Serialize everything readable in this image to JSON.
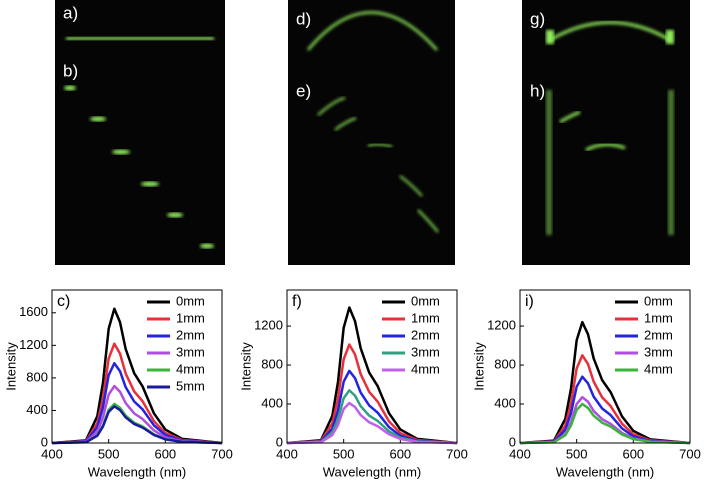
{
  "panels": {
    "labels": [
      "a)",
      "b)",
      "d)",
      "e)",
      "g)",
      "h)"
    ]
  },
  "chart_data": [
    {
      "type": "line",
      "label": "c)",
      "x_label": "Wavelength (nm)",
      "y_label": "Intensity",
      "x": [
        400,
        460,
        480,
        490,
        500,
        510,
        520,
        530,
        545,
        560,
        580,
        600,
        630,
        700
      ],
      "xlim": [
        400,
        700
      ],
      "xticks": [
        400,
        500,
        600,
        700
      ],
      "ylim": [
        0,
        1880
      ],
      "yticks": [
        0,
        400,
        800,
        1200,
        1600
      ],
      "legend": "upper right",
      "series": [
        {
          "name": "0mm",
          "color": "#000000",
          "values": [
            0,
            33,
            330,
            743,
            1403,
            1650,
            1485,
            1155,
            858,
            693,
            363,
            165,
            50,
            0
          ]
        },
        {
          "name": "1mm",
          "color": "#e8303a",
          "values": [
            0,
            24,
            244,
            549,
            1037,
            1220,
            1098,
            854,
            634,
            512,
            268,
            122,
            37,
            0
          ]
        },
        {
          "name": "2mm",
          "color": "#2424e0",
          "values": [
            0,
            20,
            196,
            441,
            833,
            980,
            882,
            686,
            510,
            412,
            216,
            98,
            29,
            0
          ]
        },
        {
          "name": "3mm",
          "color": "#b04ee0",
          "values": [
            0,
            14,
            140,
            315,
            595,
            700,
            630,
            490,
            364,
            294,
            154,
            70,
            21,
            0
          ]
        },
        {
          "name": "4mm",
          "color": "#3cb43c",
          "values": [
            0,
            10,
            96,
            216,
            408,
            480,
            432,
            336,
            250,
            202,
            106,
            48,
            14,
            0
          ]
        },
        {
          "name": "5mm",
          "color": "#1a1aa0",
          "values": [
            0,
            9,
            90,
            203,
            383,
            450,
            405,
            315,
            234,
            189,
            99,
            45,
            14,
            0
          ]
        }
      ]
    },
    {
      "type": "line",
      "label": "f)",
      "x_label": "Wavelength (nm)",
      "y_label": "Intensity",
      "x": [
        400,
        460,
        480,
        490,
        500,
        510,
        520,
        530,
        545,
        560,
        580,
        600,
        630,
        700
      ],
      "xlim": [
        400,
        700
      ],
      "xticks": [
        400,
        500,
        600,
        700
      ],
      "ylim": [
        0,
        1570
      ],
      "yticks": [
        0,
        400,
        800,
        1200
      ],
      "legend": "upper right",
      "series": [
        {
          "name": "0mm",
          "color": "#000000",
          "values": [
            0,
            28,
            278,
            626,
            1182,
            1390,
            1251,
            973,
            723,
            584,
            306,
            139,
            42,
            0
          ]
        },
        {
          "name": "1mm",
          "color": "#e8303a",
          "values": [
            0,
            20,
            202,
            455,
            859,
            1010,
            909,
            707,
            525,
            424,
            222,
            101,
            30,
            0
          ]
        },
        {
          "name": "2mm",
          "color": "#2424e0",
          "values": [
            0,
            15,
            148,
            333,
            629,
            740,
            666,
            518,
            385,
            311,
            163,
            74,
            22,
            0
          ]
        },
        {
          "name": "3mm",
          "color": "#30a080",
          "values": [
            0,
            11,
            108,
            243,
            459,
            540,
            486,
            378,
            281,
            227,
            119,
            54,
            16,
            0
          ]
        },
        {
          "name": "4mm",
          "color": "#c060e8",
          "values": [
            0,
            8,
            82,
            185,
            349,
            410,
            369,
            287,
            213,
            172,
            90,
            41,
            12,
            0
          ]
        }
      ]
    },
    {
      "type": "line",
      "label": "i)",
      "x_label": "Wavelength (nm)",
      "y_label": "Intensity",
      "x": [
        400,
        460,
        480,
        490,
        500,
        510,
        520,
        530,
        545,
        560,
        580,
        600,
        630,
        700
      ],
      "xlim": [
        400,
        700
      ],
      "xticks": [
        400,
        500,
        600,
        700
      ],
      "ylim": [
        0,
        1570
      ],
      "yticks": [
        0,
        400,
        800,
        1200
      ],
      "legend": "upper right",
      "series": [
        {
          "name": "0mm",
          "color": "#000000",
          "values": [
            0,
            25,
            248,
            558,
            1054,
            1240,
            1116,
            868,
            645,
            521,
            273,
            124,
            37,
            0
          ]
        },
        {
          "name": "1mm",
          "color": "#e8303a",
          "values": [
            0,
            18,
            180,
            405,
            765,
            900,
            810,
            630,
            468,
            378,
            198,
            90,
            27,
            0
          ]
        },
        {
          "name": "2mm",
          "color": "#2424e0",
          "values": [
            0,
            14,
            136,
            306,
            578,
            680,
            612,
            476,
            354,
            286,
            150,
            68,
            20,
            0
          ]
        },
        {
          "name": "3mm",
          "color": "#b04ee0",
          "values": [
            0,
            9,
            94,
            212,
            400,
            470,
            423,
            329,
            244,
            197,
            103,
            47,
            14,
            0
          ]
        },
        {
          "name": "4mm",
          "color": "#3cb43c",
          "values": [
            0,
            8,
            80,
            180,
            340,
            400,
            360,
            280,
            208,
            168,
            88,
            40,
            12,
            0
          ]
        }
      ]
    }
  ]
}
